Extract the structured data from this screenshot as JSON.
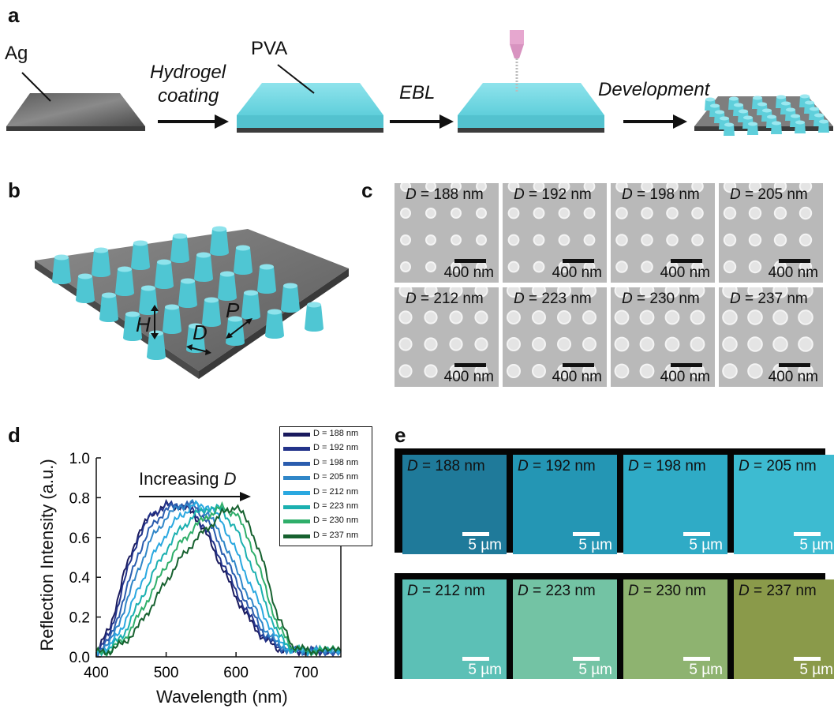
{
  "panels": {
    "a": "a",
    "b": "b",
    "c": "c",
    "d": "d",
    "e": "e"
  },
  "panel_a": {
    "ag_label": "Ag",
    "step1_line1": "Hydrogel",
    "step1_line2": "coating",
    "pva_label": "PVA",
    "step2": "EBL",
    "step3": "Development"
  },
  "panel_b": {
    "h_label": "H",
    "d_label": "D",
    "p_label": "P"
  },
  "sem": {
    "scale": "400 nm",
    "tiles": [
      {
        "d_prefix": "D",
        "d_value": " = 188 nm"
      },
      {
        "d_prefix": "D",
        "d_value": " = 192 nm"
      },
      {
        "d_prefix": "D",
        "d_value": " = 198 nm"
      },
      {
        "d_prefix": "D",
        "d_value": " = 205 nm"
      },
      {
        "d_prefix": "D",
        "d_value": " = 212 nm"
      },
      {
        "d_prefix": "D",
        "d_value": " = 223 nm"
      },
      {
        "d_prefix": "D",
        "d_value": " = 230 nm"
      },
      {
        "d_prefix": "D",
        "d_value": " = 237 nm"
      }
    ]
  },
  "optical": {
    "scale": "5 µm",
    "tiles": [
      {
        "d_prefix": "D",
        "d_value": " = 188 nm",
        "color": "#1f7a9a"
      },
      {
        "d_prefix": "D",
        "d_value": " = 192 nm",
        "color": "#2496b4"
      },
      {
        "d_prefix": "D",
        "d_value": " = 198 nm",
        "color": "#2fabc6"
      },
      {
        "d_prefix": "D",
        "d_value": " = 205 nm",
        "color": "#3dbbd1"
      },
      {
        "d_prefix": "D",
        "d_value": " = 212 nm",
        "color": "#5cc0b6"
      },
      {
        "d_prefix": "D",
        "d_value": " = 223 nm",
        "color": "#73c3a4"
      },
      {
        "d_prefix": "D",
        "d_value": " = 230 nm",
        "color": "#8eb370"
      },
      {
        "d_prefix": "D",
        "d_value": " = 237 nm",
        "color": "#8a9a4a"
      }
    ]
  },
  "chart_data": {
    "type": "line",
    "title": "",
    "xlabel": "Wavelength (nm)",
    "ylabel": "Reflection Intensity (a.u.)",
    "xlim": [
      400,
      750
    ],
    "ylim": [
      0.0,
      1.0
    ],
    "xticks": [
      "400",
      "500",
      "600",
      "700"
    ],
    "yticks": [
      "0.0",
      "0.2",
      "0.4",
      "0.6",
      "0.8",
      "1.0"
    ],
    "annotation_text": "Increasing ",
    "annotation_italic": "D",
    "legend_placement": "top-right",
    "series": [
      {
        "name": "D = 188 nm",
        "color": "#1a1a5e",
        "peak": 520,
        "width": 80,
        "amp": 0.76,
        "x": [
          400,
          420,
          440,
          460,
          480,
          500,
          520,
          540,
          560,
          580,
          600,
          620,
          640,
          660,
          680,
          700,
          720,
          750
        ],
        "y": [
          0.02,
          0.15,
          0.42,
          0.62,
          0.72,
          0.76,
          0.76,
          0.72,
          0.6,
          0.45,
          0.3,
          0.18,
          0.09,
          0.04,
          0.03,
          0.03,
          0.03,
          0.03
        ]
      },
      {
        "name": "D = 192 nm",
        "color": "#23338a",
        "peak": 525,
        "x": [
          400,
          420,
          440,
          460,
          480,
          500,
          520,
          540,
          560,
          580,
          600,
          620,
          640,
          660,
          680,
          700,
          720,
          750
        ],
        "y": [
          0.02,
          0.12,
          0.38,
          0.6,
          0.72,
          0.76,
          0.76,
          0.73,
          0.62,
          0.48,
          0.33,
          0.2,
          0.1,
          0.05,
          0.03,
          0.03,
          0.03,
          0.03
        ]
      },
      {
        "name": "D = 198 nm",
        "color": "#2a5cae",
        "peak": 535,
        "x": [
          400,
          420,
          440,
          460,
          480,
          500,
          520,
          540,
          560,
          580,
          600,
          620,
          640,
          660,
          680,
          700,
          720,
          750
        ],
        "y": [
          0.02,
          0.09,
          0.3,
          0.52,
          0.66,
          0.74,
          0.77,
          0.76,
          0.68,
          0.54,
          0.38,
          0.24,
          0.12,
          0.05,
          0.03,
          0.03,
          0.03,
          0.03
        ]
      },
      {
        "name": "D = 205 nm",
        "color": "#3086c8",
        "peak": 545,
        "x": [
          400,
          420,
          440,
          460,
          480,
          500,
          520,
          540,
          560,
          580,
          600,
          620,
          640,
          660,
          680,
          700,
          720,
          750
        ],
        "y": [
          0.02,
          0.07,
          0.24,
          0.44,
          0.6,
          0.7,
          0.76,
          0.77,
          0.72,
          0.6,
          0.44,
          0.29,
          0.15,
          0.06,
          0.03,
          0.03,
          0.03,
          0.03
        ]
      },
      {
        "name": "D = 212 nm",
        "color": "#2aa8e0",
        "peak": 560,
        "x": [
          400,
          420,
          440,
          460,
          480,
          500,
          520,
          540,
          560,
          580,
          600,
          620,
          640,
          660,
          680,
          700,
          720,
          750
        ],
        "y": [
          0.02,
          0.05,
          0.17,
          0.34,
          0.5,
          0.62,
          0.71,
          0.76,
          0.76,
          0.68,
          0.53,
          0.37,
          0.21,
          0.08,
          0.03,
          0.03,
          0.03,
          0.03
        ]
      },
      {
        "name": "D = 223 nm",
        "color": "#1bb0b0",
        "peak": 575,
        "x": [
          400,
          420,
          440,
          460,
          480,
          500,
          520,
          540,
          560,
          580,
          600,
          620,
          640,
          660,
          680,
          700,
          720,
          750
        ],
        "y": [
          0.02,
          0.04,
          0.12,
          0.26,
          0.41,
          0.54,
          0.64,
          0.71,
          0.75,
          0.74,
          0.64,
          0.48,
          0.29,
          0.11,
          0.04,
          0.03,
          0.03,
          0.03
        ]
      },
      {
        "name": "D = 230 nm",
        "color": "#2fae6a",
        "peak": 590,
        "x": [
          400,
          420,
          440,
          460,
          480,
          500,
          520,
          540,
          560,
          580,
          600,
          620,
          640,
          660,
          680,
          700,
          720,
          750
        ],
        "y": [
          0.02,
          0.03,
          0.09,
          0.2,
          0.33,
          0.46,
          0.57,
          0.65,
          0.71,
          0.75,
          0.72,
          0.58,
          0.37,
          0.15,
          0.05,
          0.03,
          0.03,
          0.03
        ]
      },
      {
        "name": "D = 237 nm",
        "color": "#16612f",
        "peak": 600,
        "x": [
          400,
          420,
          440,
          460,
          480,
          500,
          520,
          540,
          560,
          580,
          600,
          620,
          640,
          660,
          680,
          700,
          720,
          750
        ],
        "y": [
          0.02,
          0.03,
          0.07,
          0.15,
          0.26,
          0.38,
          0.49,
          0.58,
          0.65,
          0.72,
          0.76,
          0.66,
          0.46,
          0.2,
          0.06,
          0.03,
          0.03,
          0.03
        ]
      }
    ]
  }
}
